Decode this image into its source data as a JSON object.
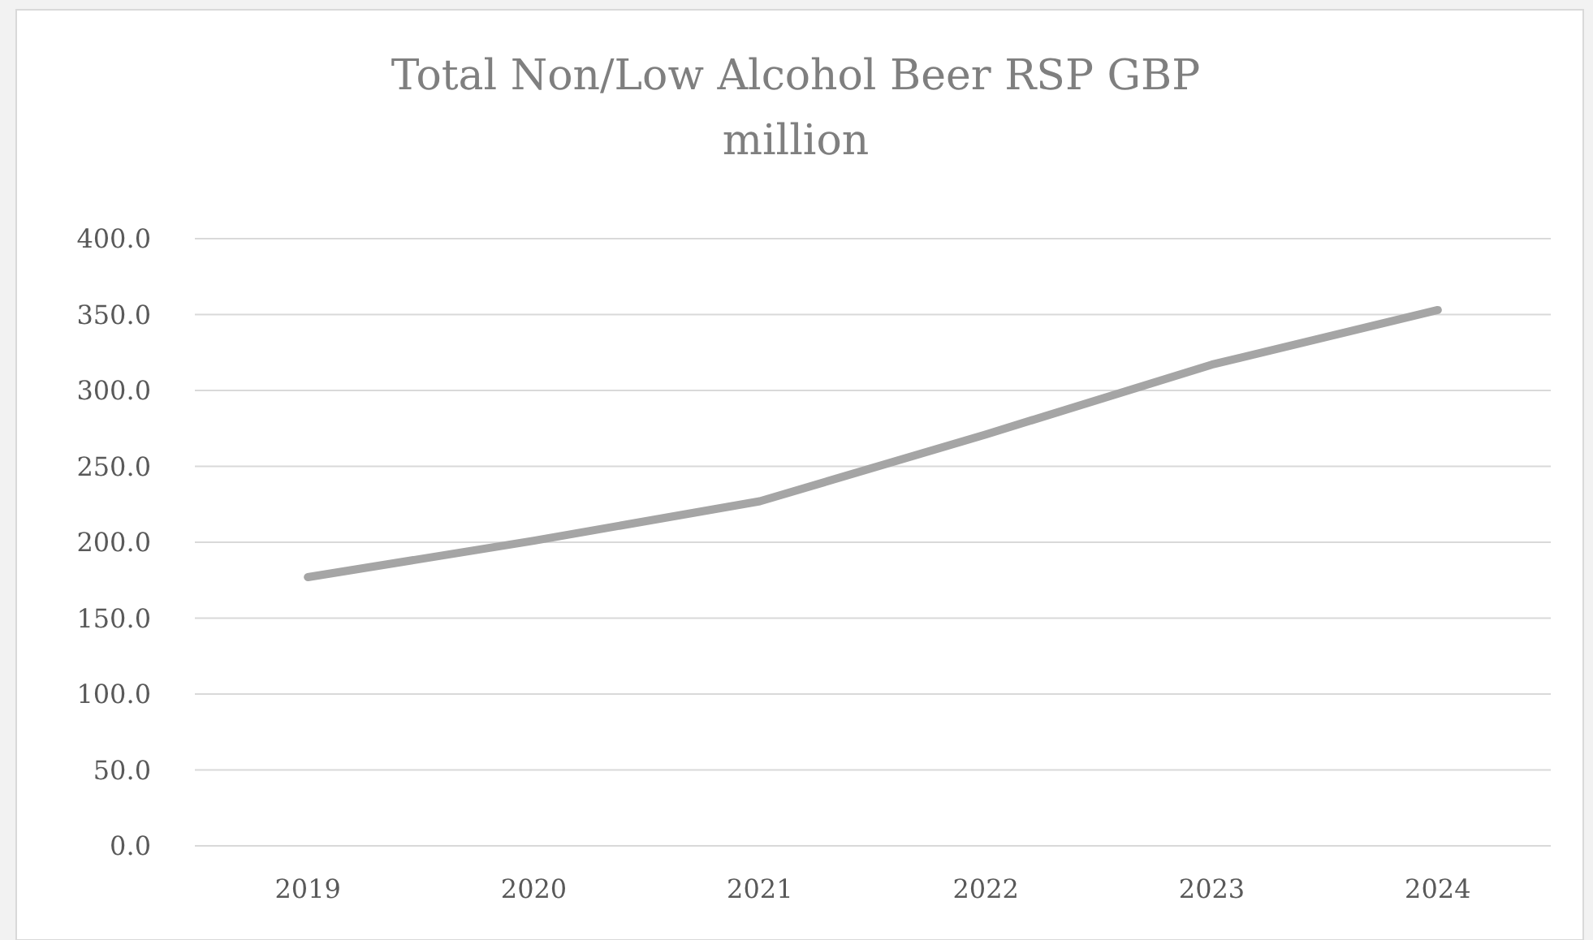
{
  "chart_data": {
    "type": "line",
    "title": "Total Non/Low Alcohol Beer RSP GBP million",
    "categories": [
      "2019",
      "2020",
      "2021",
      "2022",
      "2023",
      "2024"
    ],
    "series": [
      {
        "color": "#a5a5a5",
        "values": [
          177,
          201,
          227,
          271,
          317,
          353
        ]
      }
    ],
    "ylim": [
      0,
      400
    ],
    "yticks": [
      {
        "value": 0,
        "label": "0.0"
      },
      {
        "value": 50,
        "label": "50.0"
      },
      {
        "value": 100,
        "label": "100.0"
      },
      {
        "value": 150,
        "label": "150.0"
      },
      {
        "value": 200,
        "label": "200.0"
      },
      {
        "value": 250,
        "label": "250.0"
      },
      {
        "value": 300,
        "label": "300.0"
      },
      {
        "value": 350,
        "label": "350.0"
      },
      {
        "value": 400,
        "label": "400.0"
      }
    ],
    "grid": "y",
    "marker": "none",
    "line_style": "solid"
  }
}
